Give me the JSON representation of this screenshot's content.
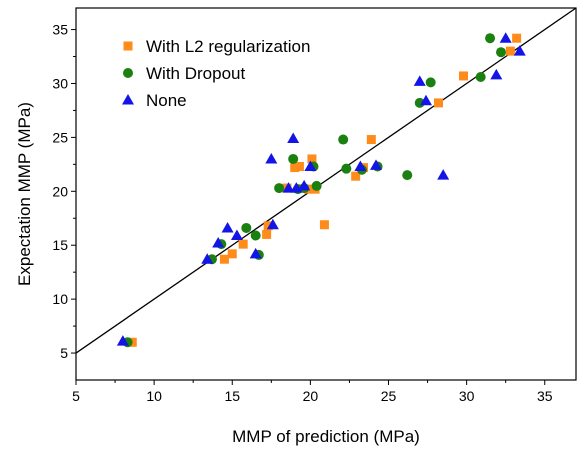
{
  "chart_data": {
    "type": "scatter",
    "title": "",
    "xlabel": "MMP of prediction (MPa)",
    "ylabel": "Expectation MMP (MPa)",
    "xlim": [
      5,
      37
    ],
    "ylim": [
      2.5,
      37
    ],
    "xticks": [
      5,
      10,
      15,
      20,
      25,
      30,
      35
    ],
    "yticks": [
      5,
      10,
      15,
      20,
      25,
      30,
      35
    ],
    "grid": false,
    "legend_position": "top-left",
    "reference_line": {
      "type": "y=x"
    },
    "series": [
      {
        "name": "With L2 regularization",
        "marker": "square",
        "color": "#FF8C1A",
        "points": [
          [
            8.6,
            6.0
          ],
          [
            14.5,
            13.7
          ],
          [
            15.0,
            14.2
          ],
          [
            15.7,
            15.1
          ],
          [
            17.2,
            16.0
          ],
          [
            17.3,
            16.8
          ],
          [
            18.5,
            20.3
          ],
          [
            19.0,
            22.2
          ],
          [
            19.3,
            22.3
          ],
          [
            19.9,
            20.2
          ],
          [
            20.1,
            23.0
          ],
          [
            20.3,
            20.2
          ],
          [
            20.9,
            16.9
          ],
          [
            22.9,
            21.4
          ],
          [
            23.4,
            22.2
          ],
          [
            23.9,
            24.8
          ],
          [
            28.2,
            28.2
          ],
          [
            29.8,
            30.7
          ],
          [
            32.8,
            33.0
          ],
          [
            33.2,
            34.2
          ]
        ]
      },
      {
        "name": "With Dropout",
        "marker": "circle",
        "color": "#1A8010",
        "points": [
          [
            8.3,
            6.0
          ],
          [
            13.7,
            13.7
          ],
          [
            14.3,
            15.1
          ],
          [
            15.9,
            16.6
          ],
          [
            16.5,
            15.9
          ],
          [
            16.7,
            14.1
          ],
          [
            18.0,
            20.3
          ],
          [
            18.9,
            23.0
          ],
          [
            19.2,
            20.2
          ],
          [
            19.6,
            20.3
          ],
          [
            20.2,
            22.3
          ],
          [
            20.4,
            20.5
          ],
          [
            22.1,
            24.8
          ],
          [
            22.3,
            22.1
          ],
          [
            23.3,
            22.0
          ],
          [
            24.3,
            22.3
          ],
          [
            26.2,
            21.5
          ],
          [
            27.0,
            28.2
          ],
          [
            27.7,
            30.1
          ],
          [
            30.9,
            30.6
          ],
          [
            31.5,
            34.2
          ],
          [
            32.2,
            32.9
          ]
        ]
      },
      {
        "name": "None",
        "marker": "triangle",
        "color": "#1414E6",
        "points": [
          [
            8.0,
            6.1
          ],
          [
            13.4,
            13.7
          ],
          [
            14.1,
            15.2
          ],
          [
            14.7,
            16.6
          ],
          [
            15.3,
            15.9
          ],
          [
            16.5,
            14.2
          ],
          [
            17.6,
            16.9
          ],
          [
            17.5,
            23.0
          ],
          [
            18.6,
            20.3
          ],
          [
            18.9,
            24.9
          ],
          [
            19.1,
            20.3
          ],
          [
            19.6,
            20.5
          ],
          [
            20.0,
            22.3
          ],
          [
            23.2,
            22.3
          ],
          [
            24.2,
            22.4
          ],
          [
            27.0,
            30.2
          ],
          [
            27.4,
            28.4
          ],
          [
            28.5,
            21.5
          ],
          [
            31.9,
            30.8
          ],
          [
            32.5,
            34.2
          ],
          [
            33.4,
            33.0
          ]
        ]
      }
    ]
  }
}
